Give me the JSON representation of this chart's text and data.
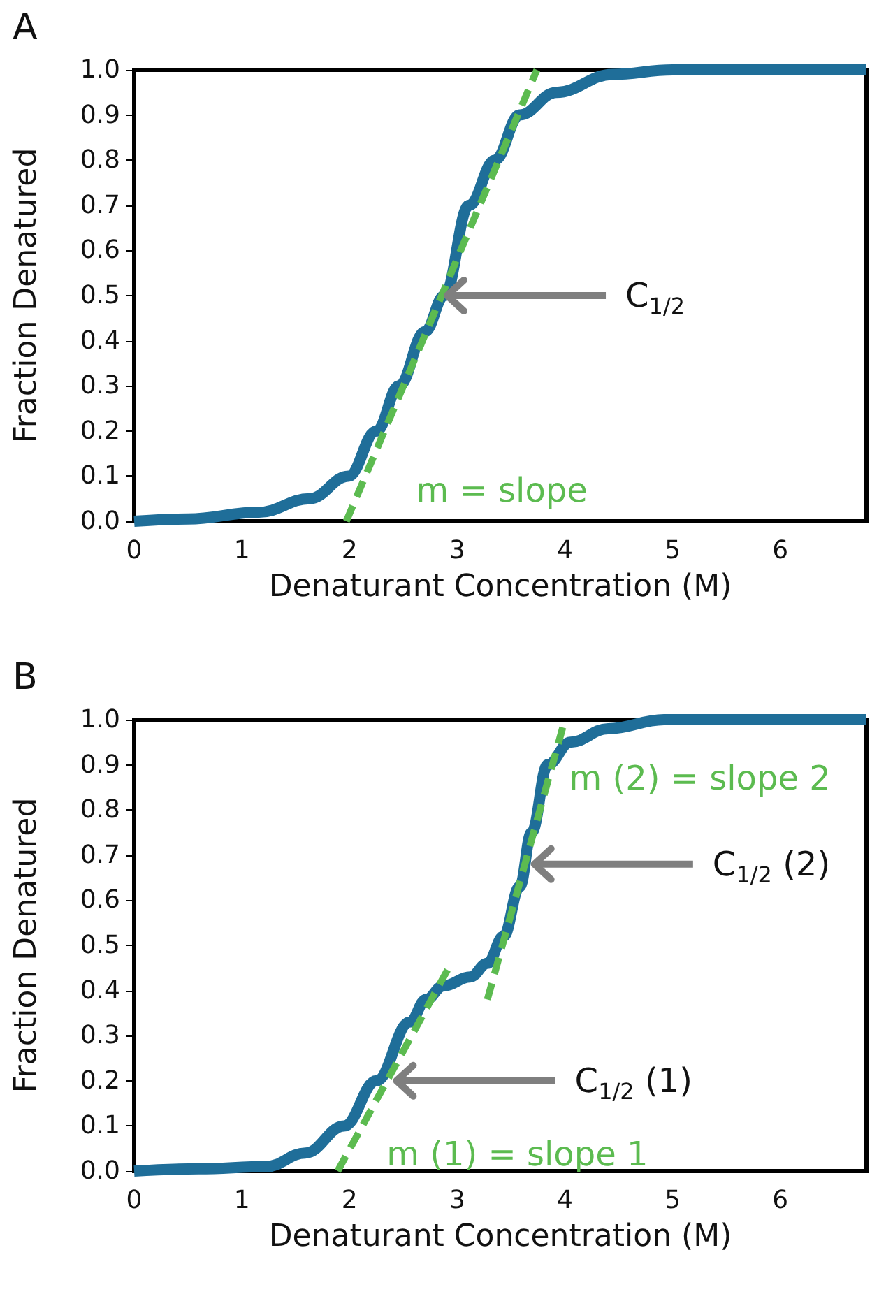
{
  "chart_data": [
    {
      "type": "line",
      "title": "A",
      "xlabel": "Denaturant Concentration (M)",
      "ylabel": "Fraction Denatured",
      "xlim": [
        0,
        6.8
      ],
      "xticks": [
        0,
        1,
        2,
        3,
        4,
        5,
        6
      ],
      "ylim": [
        0,
        1
      ],
      "yticks": [
        {
          "value": 0,
          "label": "0.0"
        },
        {
          "value": 0.1,
          "label": "0.1"
        },
        {
          "value": 0.2,
          "label": "0.2"
        },
        {
          "value": 0.3,
          "label": "0.3"
        },
        {
          "value": 0.4,
          "label": "0.4"
        },
        {
          "value": 0.5,
          "label": "0.5"
        },
        {
          "value": 0.6,
          "label": "0.6"
        },
        {
          "value": 0.7,
          "label": "0.7"
        },
        {
          "value": 0.8,
          "label": "0.8"
        },
        {
          "value": 0.9,
          "label": "0.9"
        },
        {
          "value": 1,
          "label": "1.0"
        }
      ],
      "grid": false,
      "marker": "none",
      "legend": false,
      "series": [
        {
          "color": "#1f6e99",
          "x": [
            0,
            0.5,
            1.16,
            1.63,
            1.99,
            2.25,
            2.46,
            2.7,
            2.88,
            3.11,
            3.35,
            3.58,
            3.92,
            4.44,
            5,
            6,
            6.8
          ],
          "values": [
            0,
            0.005,
            0.02,
            0.05,
            0.1,
            0.2,
            0.3,
            0.42,
            0.5,
            0.7,
            0.8,
            0.9,
            0.95,
            0.99,
            1,
            1,
            1
          ]
        },
        {
          "name": "m = slope",
          "type": "line",
          "line_style": "dashed",
          "color": "#5cbb50",
          "x": [
            1.97,
            3.74
          ],
          "values": [
            0,
            1
          ]
        }
      ],
      "annotations": [
        {
          "text": "C$_{1/2}$",
          "x": 2.88,
          "y": 0.5
        }
      ]
    },
    {
      "type": "line",
      "title": "B",
      "xlabel": "Denaturant Concentration (M)",
      "ylabel": "Fraction Denatured",
      "xlim": [
        0,
        6.8
      ],
      "xticks": [
        0,
        1,
        2,
        3,
        4,
        5,
        6
      ],
      "ylim": [
        0,
        1
      ],
      "yticks": [
        {
          "value": 0,
          "label": "0.0"
        },
        {
          "value": 0.1,
          "label": "0.1"
        },
        {
          "value": 0.2,
          "label": "0.2"
        },
        {
          "value": 0.3,
          "label": "0.3"
        },
        {
          "value": 0.4,
          "label": "0.4"
        },
        {
          "value": 0.5,
          "label": "0.5"
        },
        {
          "value": 0.6,
          "label": "0.6"
        },
        {
          "value": 0.7,
          "label": "0.7"
        },
        {
          "value": 0.8,
          "label": "0.8"
        },
        {
          "value": 0.9,
          "label": "0.9"
        },
        {
          "value": 1,
          "label": "1.0"
        }
      ],
      "grid": false,
      "marker": "none",
      "legend": false,
      "series": [
        {
          "color": "#1f6e99",
          "x": [
            0,
            0.6,
            1.23,
            1.59,
            1.95,
            2.25,
            2.56,
            2.71,
            2.87,
            3.12,
            3.28,
            3.43,
            3.58,
            3.69,
            3.84,
            4.05,
            4.4,
            4.92,
            6,
            6.8
          ],
          "values": [
            0,
            0.005,
            0.01,
            0.04,
            0.1,
            0.2,
            0.33,
            0.38,
            0.41,
            0.43,
            0.46,
            0.52,
            0.63,
            0.75,
            0.9,
            0.95,
            0.98,
            1,
            1,
            1
          ]
        },
        {
          "name": "m (1) = slope 1",
          "type": "line",
          "line_style": "dashed",
          "color": "#5cbb50",
          "x": [
            1.89,
            2.92
          ],
          "values": [
            0,
            0.45
          ]
        },
        {
          "name": "m (2) = slope 2",
          "type": "line",
          "line_style": "dashed",
          "color": "#5cbb50",
          "x": [
            3.28,
            4.0
          ],
          "values": [
            0.38,
            1
          ]
        }
      ],
      "annotations": [
        {
          "text": "C$_{1/2}$ (1)",
          "x": 2.41,
          "y": 0.2
        },
        {
          "text": "C$_{1/2}$ (2)",
          "x": 3.69,
          "y": 0.68
        }
      ]
    }
  ]
}
